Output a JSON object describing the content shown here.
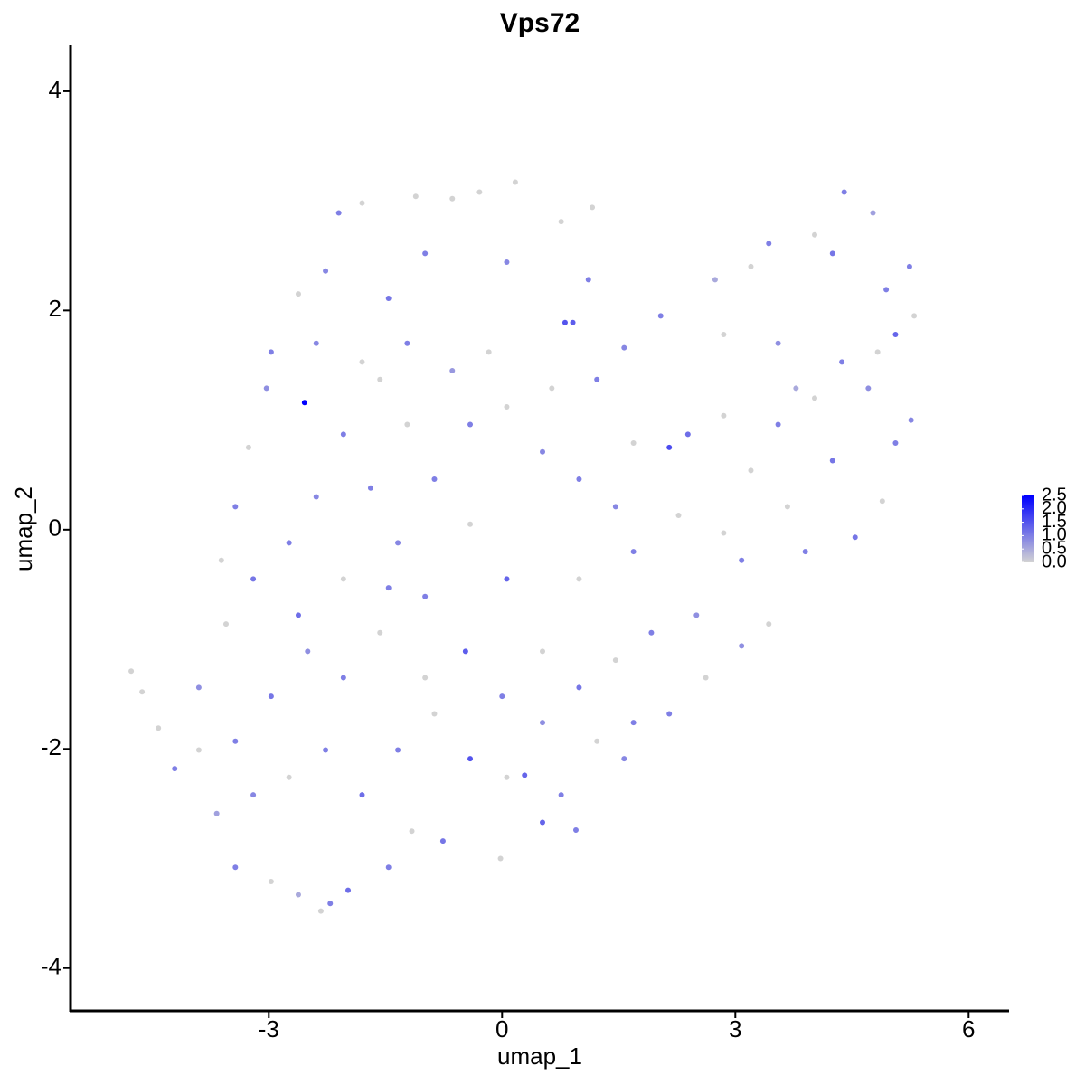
{
  "chart_data": {
    "type": "scatter",
    "title": "Vps72",
    "x_label": "umap_1",
    "y_label": "umap_2",
    "xlim": [
      -5.55,
      6.52
    ],
    "ylim": [
      -4.39,
      4.42
    ],
    "xticks": [
      -3,
      0,
      3,
      6
    ],
    "yticks": [
      -4,
      -2,
      0,
      2,
      4
    ],
    "x": [
      -4.77,
      -4.63,
      -4.42,
      -4.21,
      -3.9,
      -3.67,
      -3.43,
      -2.97,
      -2.62,
      -2.33,
      -2.21,
      -1.98,
      -1.46,
      -1.16,
      -0.76,
      -0.02,
      0.52,
      0.95,
      1.57,
      2.15,
      2.62,
      3.08,
      3.43,
      3.9,
      4.54,
      4.89,
      5.06,
      5.26,
      5.3,
      5.24,
      4.77,
      4.4,
      4.02,
      3.43,
      3.2,
      2.74,
      2.04,
      1.57,
      1.22,
      0.81,
      0.91,
      1.16,
      0.76,
      0.17,
      -0.29,
      -0.64,
      -1.11,
      -1.8,
      -2.1,
      -2.27,
      -2.62,
      -2.97,
      -3.03,
      -2.54,
      -3.26,
      -3.43,
      -3.61,
      -3.55,
      -3.2,
      -2.74,
      -2.39,
      -2.04,
      -1.57,
      -1.22,
      -0.64,
      -0.17,
      0.06,
      0.52,
      0.99,
      1.69,
      2.15,
      2.39,
      2.85,
      3.2,
      3.55,
      3.78,
      4.02,
      4.37,
      4.71,
      4.25,
      3.67,
      3.08,
      2.5,
      1.92,
      1.46,
      0.99,
      0.52,
      0.06,
      -0.41,
      -0.87,
      -1.34,
      -0.99,
      -1.57,
      -2.04,
      -2.5,
      -2.97,
      -3.43,
      -3.9,
      -3.2,
      -2.74,
      -2.27,
      -1.8,
      -1.34,
      -0.87,
      -0.41,
      0.06,
      0.29,
      0.76,
      1.22,
      1.69,
      -0.47,
      0,
      0.52,
      -0.99,
      -1.46,
      -2.04,
      -2.62,
      -1.69,
      -1.22,
      -0.41,
      0.64,
      1.11,
      0.06,
      -0.99,
      -1.46,
      -1.8,
      -2.39,
      1.69,
      2.27,
      2.85,
      1.46,
      0.99,
      4.25,
      4.94,
      4.83,
      5.06,
      3.55,
      2.85
    ],
    "values": [
      -1.29,
      -1.48,
      -1.81,
      -2.18,
      -1.44,
      -2.59,
      -3.08,
      -3.21,
      -3.33,
      -3.48,
      -3.41,
      -3.29,
      -3.08,
      -2.75,
      -2.84,
      -3.0,
      -2.67,
      -2.74,
      -2.09,
      -1.68,
      -1.35,
      -1.06,
      -0.86,
      -0.2,
      -0.07,
      0.26,
      0.79,
      1.0,
      1.95,
      2.4,
      2.89,
      3.08,
      2.69,
      2.61,
      2.4,
      2.28,
      1.95,
      1.66,
      1.37,
      1.89,
      1.89,
      2.94,
      2.81,
      3.17,
      3.08,
      3.02,
      3.04,
      2.98,
      2.89,
      2.36,
      2.15,
      1.62,
      1.29,
      1.16,
      0.75,
      0.21,
      -0.28,
      -0.86,
      -0.45,
      -0.12,
      0.3,
      0.87,
      1.37,
      1.7,
      1.45,
      1.62,
      1.12,
      0.71,
      0.46,
      0.79,
      0.75,
      0.87,
      1.04,
      0.54,
      0.96,
      1.29,
      1.2,
      1.53,
      1.29,
      0.63,
      0.21,
      -0.28,
      -0.78,
      -0.94,
      -1.19,
      -1.44,
      -1.11,
      -0.45,
      0.05,
      0.46,
      -0.12,
      -0.61,
      -0.94,
      -1.35,
      -1.11,
      -1.52,
      -1.93,
      -2.01,
      -2.42,
      -2.26,
      -2.01,
      -2.42,
      -2.01,
      -1.68,
      -2.09,
      -2.26,
      -2.24,
      -2.42,
      -1.93,
      -1.76,
      -1.11,
      -1.52,
      -1.76,
      -1.35,
      -0.53,
      -0.45,
      -0.78,
      0.38,
      0.96,
      0.96,
      1.29,
      2.28,
      2.44,
      2.52,
      2.11,
      1.53,
      1.7,
      -0.2,
      0.13,
      -0.03,
      0.21,
      -0.45,
      2.52,
      2.19,
      1.62,
      1.78,
      1.7,
      1.78
    ],
    "expression": [
      0,
      0,
      0,
      1.0,
      0.8,
      0.6,
      1.0,
      0,
      0.5,
      0,
      1.0,
      1.2,
      1.0,
      0,
      1.1,
      0,
      1.3,
      1.0,
      0.9,
      1.0,
      0,
      0.8,
      0,
      1.0,
      1.1,
      0,
      1.0,
      0.9,
      0,
      1.0,
      0.6,
      1.0,
      0,
      1.0,
      0,
      0.5,
      1.0,
      0.9,
      1.0,
      1.5,
      1.4,
      0,
      0,
      0,
      0,
      0,
      0,
      0,
      1.0,
      0.9,
      0,
      1.0,
      0.8,
      2.5,
      0,
      1.0,
      0,
      0,
      1.1,
      1.0,
      0.9,
      1.0,
      0,
      1.0,
      0.7,
      0,
      0,
      0.9,
      1.0,
      0,
      1.6,
      1.2,
      0,
      0,
      1.0,
      0.5,
      0,
      1.0,
      0.8,
      1.1,
      0,
      1.0,
      0.8,
      1.0,
      0,
      1.1,
      0,
      1.3,
      0,
      1.0,
      0.9,
      1.0,
      0,
      1.0,
      0.8,
      1.1,
      1.0,
      0,
      0.9,
      0,
      1.0,
      1.2,
      1.0,
      0,
      1.5,
      0,
      1.3,
      1.0,
      0,
      1.0,
      1.4,
      1.0,
      0.8,
      0,
      1.0,
      0,
      1.2,
      1.0,
      0,
      1.0,
      0,
      1.0,
      0.9,
      1.0,
      1.1,
      0,
      0.9,
      1.0,
      0,
      0,
      0.9,
      0,
      1.1,
      1.0,
      0,
      1.3,
      0.8,
      0
    ],
    "colorbar": {
      "lim": [
        0,
        2.5
      ],
      "colors": [
        "#d3d3d3",
        "#0000ff"
      ],
      "ticks": [
        {
          "value": 0,
          "label": "0.0"
        },
        {
          "value": 0.5,
          "label": "0.5"
        },
        {
          "value": 1,
          "label": "1.0"
        },
        {
          "value": 1.5,
          "label": "1.5"
        },
        {
          "value": 2,
          "label": "2.0"
        },
        {
          "value": 2.5,
          "label": "2.5"
        }
      ]
    }
  }
}
